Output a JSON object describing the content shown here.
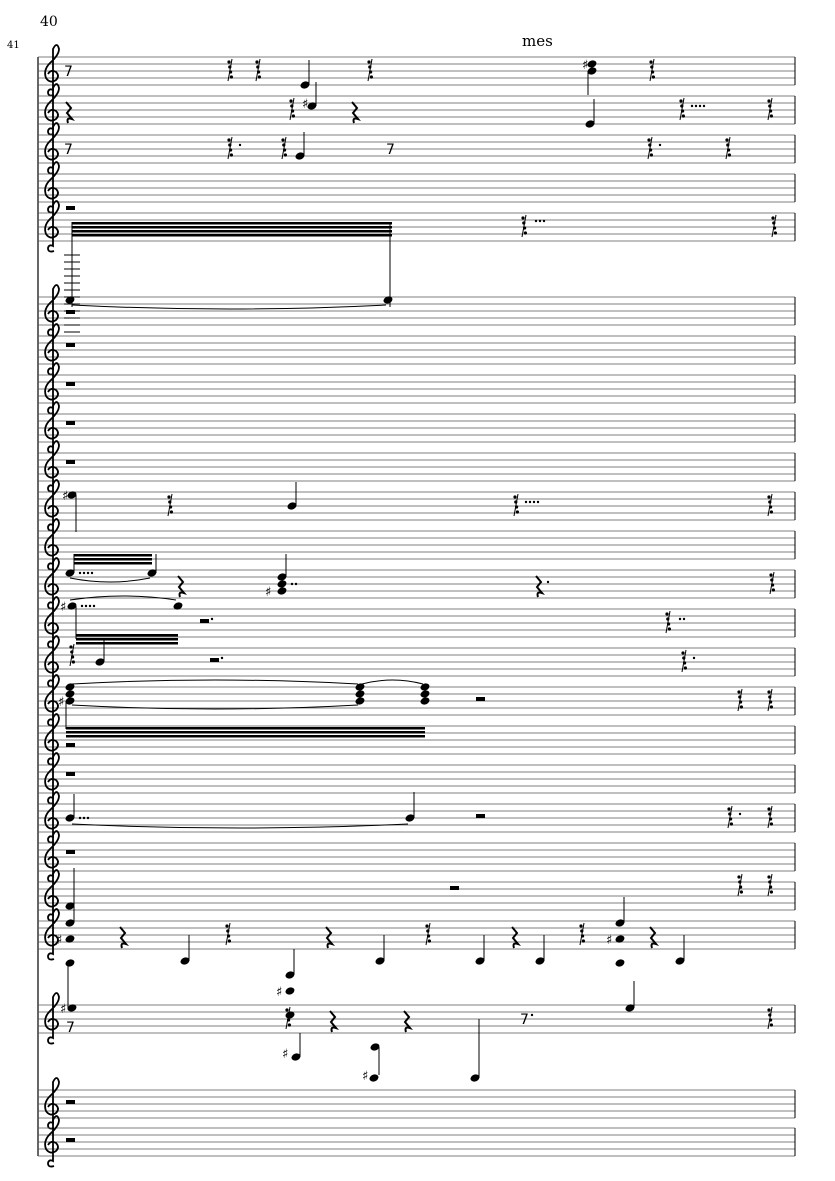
{
  "score": {
    "measure_number_top": "40",
    "measure_number_side": "41",
    "text_mark": "mes",
    "clef": "treble",
    "staff_groups": [
      {
        "staves": 5
      },
      {
        "staves": 17
      },
      {
        "staves": 3
      }
    ]
  }
}
